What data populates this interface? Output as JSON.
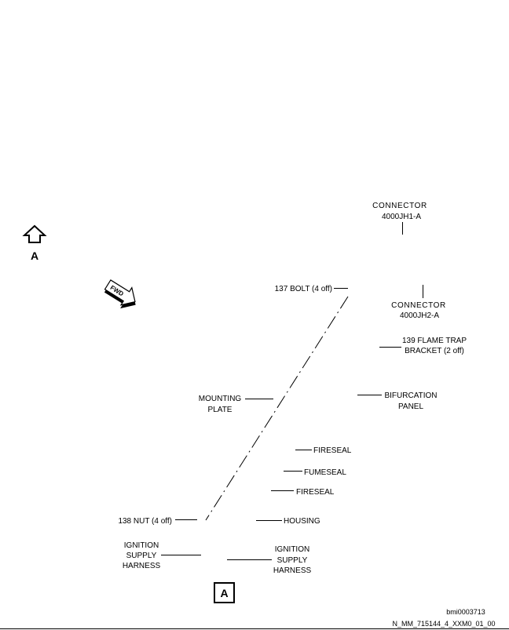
{
  "callouts": {
    "connector_jh1": {
      "line1": "CONNECTOR",
      "line2": "4000JH1-A"
    },
    "bolt": {
      "text": "137 BOLT (4 off)"
    },
    "connector_jh2": {
      "line1": "CONNECTOR",
      "line2": "4000JH2-A"
    },
    "flame_trap_bracket": {
      "line1": "139 FLAME TRAP",
      "line2": "BRACKET (2 off)"
    },
    "mounting_plate": {
      "line1": "MOUNTING",
      "line2": "PLATE"
    },
    "bifurcation_panel": {
      "line1": "BIFURCATION",
      "line2": "PANEL"
    },
    "fireseal_upper": {
      "text": "FIRESEAL"
    },
    "fumeseal": {
      "text": "FUMESEAL"
    },
    "fireseal_lower": {
      "text": "FIRESEAL"
    },
    "nut": {
      "text": "138 NUT (4 off)"
    },
    "housing": {
      "text": "HOUSING"
    },
    "harness_left": {
      "line1": "IGNITION",
      "line2": "SUPPLY",
      "line3": "HARNESS"
    },
    "harness_right": {
      "line1": "IGNITION",
      "line2": "SUPPLY",
      "line3": "HARNESS"
    }
  },
  "view_arrow": {
    "label": "A",
    "icon": "view-arrow-up-icon"
  },
  "fwd_arrow": {
    "label": "FWD",
    "icon": "fwd-arrow-icon"
  },
  "view_box": {
    "label": "A"
  },
  "footer": {
    "figure_id": "bmi0003713",
    "drawing_ref": "N_MM_715144_4_XXM0_01_00"
  },
  "colors": {
    "ink": "#000000",
    "background": "#ffffff"
  }
}
